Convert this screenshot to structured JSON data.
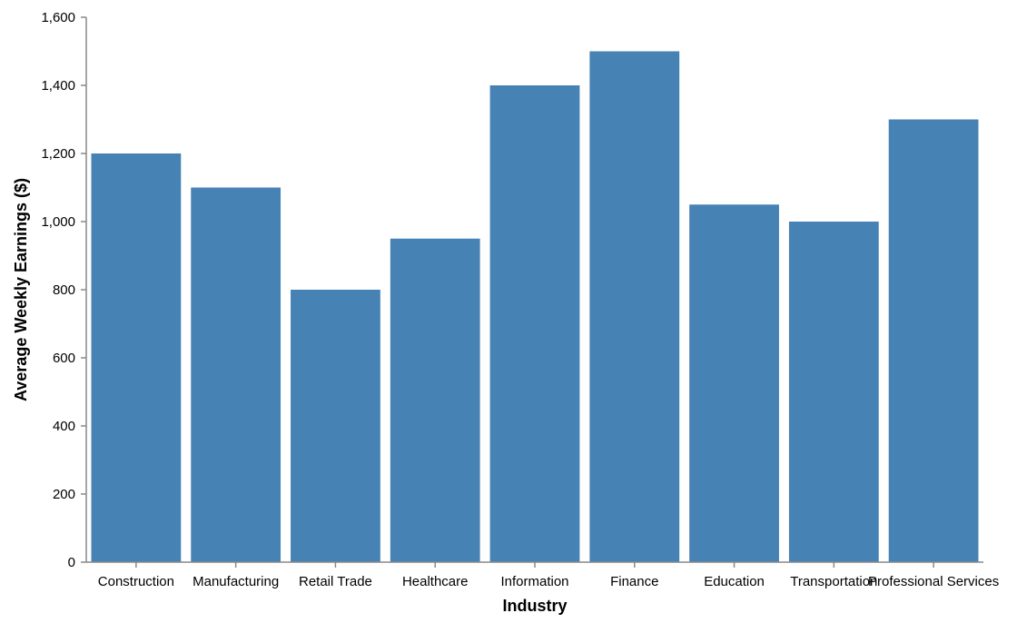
{
  "colors": {
    "bar": "#4682b4",
    "axis": "#888888"
  },
  "chart_data": {
    "type": "bar",
    "categories": [
      "Construction",
      "Manufacturing",
      "Retail Trade",
      "Healthcare",
      "Information",
      "Finance",
      "Education",
      "Transportation",
      "Professional Services"
    ],
    "values": [
      1200,
      1100,
      800,
      950,
      1400,
      1500,
      1050,
      1000,
      1300
    ],
    "xlabel": "Industry",
    "ylabel": "Average Weekly Earnings ($)",
    "ylim": [
      0,
      1600
    ],
    "yticks": [
      0,
      200,
      400,
      600,
      800,
      1000,
      1200,
      1400,
      1600
    ],
    "ytick_labels": [
      "0",
      "200",
      "400",
      "600",
      "800",
      "1,000",
      "1,200",
      "1,400",
      "1,600"
    ],
    "grid": false,
    "legend": "none"
  }
}
